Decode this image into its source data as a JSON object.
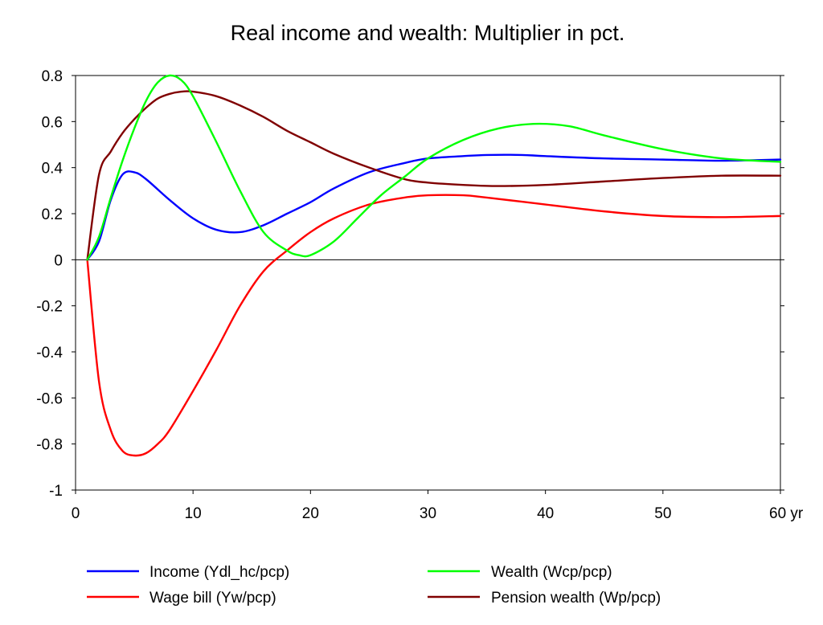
{
  "chart_data": {
    "type": "line",
    "title": "Real income and wealth: Multiplier in pct.",
    "xlabel": "",
    "ylabel": "",
    "x_unit": "yr",
    "xlim": [
      0,
      60
    ],
    "ylim": [
      -1,
      0.8
    ],
    "x_ticks": [
      0,
      10,
      20,
      30,
      40,
      50,
      60
    ],
    "x_tick_labels": [
      "0",
      "10",
      "20",
      "30",
      "40",
      "50",
      "60 yr"
    ],
    "y_ticks": [
      0.8,
      0.6,
      0.4,
      0.2,
      0,
      -0.2,
      -0.4,
      -0.6,
      -0.8,
      -1
    ],
    "y_tick_labels": [
      "0.8",
      "0.6",
      "0.4",
      "0.2",
      "0",
      "-0.2",
      "-0.4",
      "-0.6",
      "-0.8",
      "-1"
    ],
    "grid": false,
    "zero_line": true,
    "legend_position": "bottom",
    "series": [
      {
        "name": "Income (Ydl_hc/pcp)",
        "color": "#0000ff",
        "x": [
          1,
          2,
          3,
          4,
          5,
          6,
          8,
          10,
          12,
          14,
          16,
          18,
          20,
          22,
          25,
          28,
          30,
          33,
          35,
          38,
          40,
          45,
          50,
          55,
          60
        ],
        "y": [
          0,
          0.08,
          0.26,
          0.37,
          0.38,
          0.35,
          0.26,
          0.18,
          0.13,
          0.12,
          0.15,
          0.2,
          0.25,
          0.31,
          0.38,
          0.42,
          0.44,
          0.45,
          0.455,
          0.455,
          0.45,
          0.44,
          0.435,
          0.43,
          0.435
        ]
      },
      {
        "name": "Wage bill (Yw/pcp)",
        "color": "#ff0000",
        "x": [
          1,
          2,
          3,
          4,
          5,
          6,
          7,
          8,
          10,
          12,
          14,
          16,
          18,
          20,
          22,
          25,
          28,
          30,
          33,
          35,
          40,
          45,
          50,
          55,
          60
        ],
        "y": [
          0,
          -0.53,
          -0.74,
          -0.83,
          -0.85,
          -0.84,
          -0.8,
          -0.74,
          -0.57,
          -0.39,
          -0.2,
          -0.05,
          0.04,
          0.12,
          0.18,
          0.24,
          0.27,
          0.28,
          0.28,
          0.27,
          0.24,
          0.21,
          0.19,
          0.185,
          0.19
        ]
      },
      {
        "name": "Wealth (Wcp/pcp)",
        "color": "#00ff00",
        "x": [
          1,
          2,
          3,
          4,
          5,
          6,
          7,
          8,
          9,
          10,
          12,
          14,
          16,
          18,
          19,
          20,
          22,
          24,
          26,
          28,
          30,
          33,
          36,
          39,
          42,
          45,
          50,
          55,
          60
        ],
        "y": [
          0,
          0.1,
          0.27,
          0.43,
          0.57,
          0.69,
          0.77,
          0.8,
          0.78,
          0.71,
          0.51,
          0.3,
          0.12,
          0.04,
          0.02,
          0.02,
          0.08,
          0.18,
          0.28,
          0.36,
          0.44,
          0.52,
          0.57,
          0.59,
          0.58,
          0.54,
          0.48,
          0.44,
          0.425
        ]
      },
      {
        "name": "Pension wealth (Wp/pcp)",
        "color": "#800000",
        "x": [
          1,
          2,
          3,
          4,
          5,
          6,
          7,
          8,
          9,
          10,
          12,
          14,
          16,
          18,
          20,
          22,
          25,
          28,
          30,
          33,
          36,
          40,
          45,
          50,
          55,
          60
        ],
        "y": [
          0,
          0.37,
          0.47,
          0.55,
          0.61,
          0.66,
          0.7,
          0.72,
          0.73,
          0.73,
          0.71,
          0.67,
          0.62,
          0.56,
          0.51,
          0.46,
          0.4,
          0.35,
          0.335,
          0.325,
          0.32,
          0.325,
          0.34,
          0.355,
          0.365,
          0.365
        ]
      }
    ]
  }
}
